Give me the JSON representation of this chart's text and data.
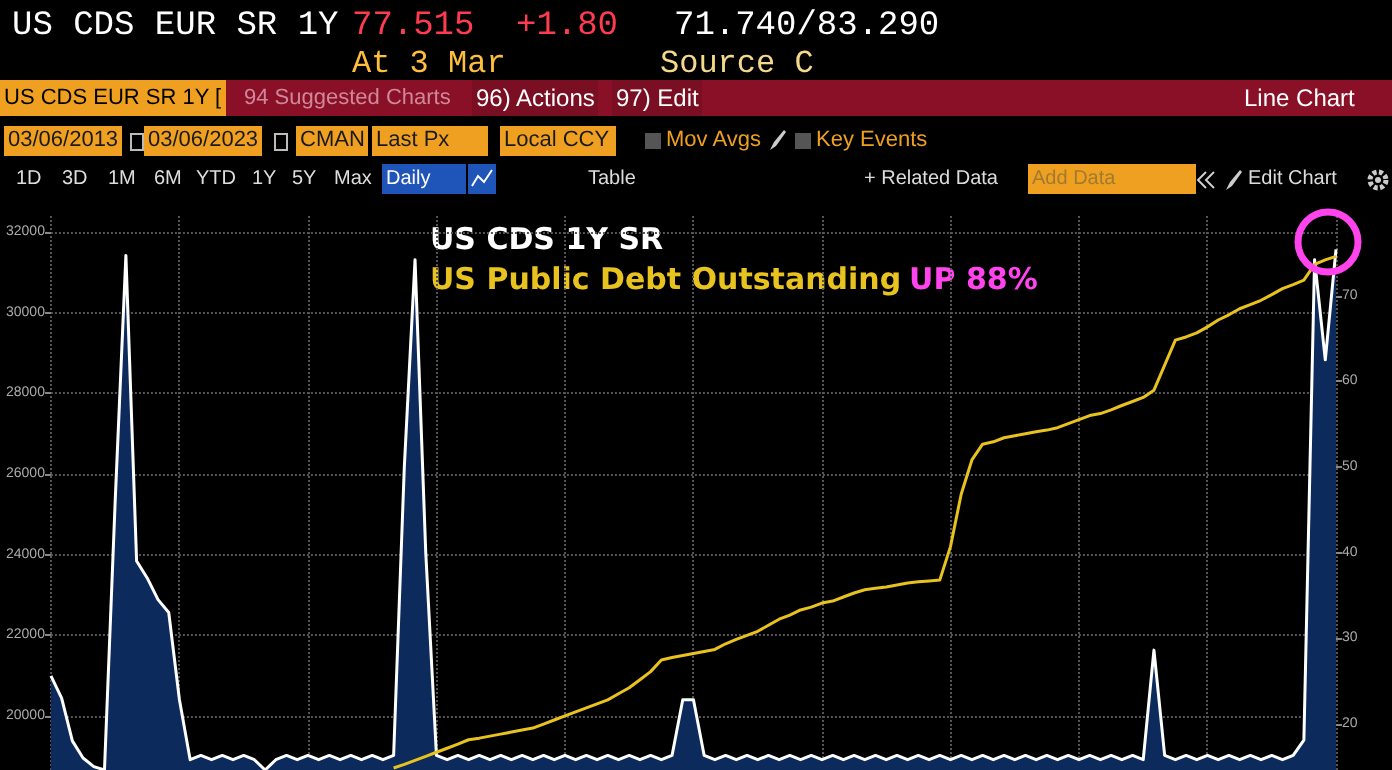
{
  "chart_data": {
    "type": "line",
    "annotations": [
      "US CDS EUR SR 1Y",
      "77.515",
      "+1.80",
      "71.740/83.290",
      "At 3 Mar",
      "Source C",
      "US CDS EUR SR 1Y [",
      "94 Suggested Charts",
      "96) Actions",
      "97) Edit",
      "Line Chart",
      "03/06/2013",
      "03/06/2023",
      "CMAN",
      "Last Px",
      "Local CCY",
      "Mov Avgs",
      "Key Events",
      "1D",
      "3D",
      "1M",
      "6M",
      "YTD",
      "1Y",
      "5Y",
      "Max",
      "Daily",
      "Table",
      "+ Related Data",
      "Add Data",
      "Edit Chart",
      "UP 88%"
    ],
    "categories": [
      null,
      null,
      null,
      null,
      null,
      null,
      null,
      null,
      null,
      null,
      null,
      null,
      null,
      null,
      null,
      null,
      null,
      null,
      null,
      null,
      null,
      null,
      null,
      null,
      null,
      null,
      null,
      null,
      null,
      null,
      null,
      null,
      null,
      null,
      null,
      null,
      null,
      null,
      null,
      null,
      null,
      null,
      null,
      null,
      null,
      null,
      null,
      null,
      null,
      null,
      null,
      null,
      null,
      null,
      null,
      null,
      null,
      null,
      null,
      null,
      null,
      null,
      null,
      null,
      null,
      null,
      null,
      null,
      null,
      null,
      null,
      null,
      null,
      null,
      null,
      null,
      null,
      null,
      null,
      null,
      null,
      null,
      null,
      null,
      null,
      null,
      null,
      null,
      null,
      null,
      null,
      null,
      null,
      null,
      null,
      null,
      null,
      null,
      null,
      null,
      null,
      null,
      null,
      null,
      null,
      null,
      null,
      null,
      null,
      null,
      null,
      null,
      null,
      null,
      null,
      null,
      null,
      null,
      null,
      null,
      null
    ],
    "ylim": [
      18660,
      32400
    ],
    "yticks": [
      20000,
      22000,
      24000,
      26000,
      28000,
      30000,
      32000
    ],
    "y2lim": [
      14.6,
      79.3
    ],
    "y2ticks": [
      20,
      30,
      40,
      50,
      60,
      70
    ],
    "grid": true,
    "tick_labels": "y",
    "series": [
      {
        "name": "US CDS 1Y SR",
        "type": "area",
        "axis": "y2",
        "color": "#ffffff",
        "values": [
          25.6,
          23,
          18,
          16,
          15,
          14.6,
          46,
          74.7,
          39,
          37,
          34.5,
          33,
          22.8,
          15.8,
          16.3,
          15.8,
          16.3,
          15.8,
          16.3,
          15.8,
          14.6,
          15.8,
          16.3,
          15.8,
          16.3,
          15.8,
          16.3,
          15.8,
          16.3,
          15.8,
          16.3,
          15.8,
          16.3,
          50,
          74.2,
          40,
          16.3,
          15.8,
          16.3,
          15.8,
          16.3,
          15.8,
          16.3,
          15.8,
          16.3,
          15.8,
          16.3,
          15.8,
          16.3,
          15.8,
          16.3,
          15.8,
          16.3,
          15.8,
          16.3,
          15.8,
          16.3,
          15.8,
          16.3,
          22.8,
          22.8,
          16.3,
          15.8,
          16.3,
          15.8,
          16.3,
          15.8,
          16.3,
          15.8,
          16.3,
          15.8,
          16.3,
          15.8,
          16.3,
          15.8,
          16.3,
          15.8,
          16.3,
          15.8,
          16.3,
          15.8,
          16.3,
          15.8,
          16.3,
          15.8,
          16.3,
          15.8,
          16.3,
          15.8,
          16.3,
          15.8,
          16.3,
          15.8,
          16.3,
          15.8,
          16.3,
          15.8,
          16.3,
          15.8,
          16.3,
          15.8,
          16.3,
          15.8,
          28.6,
          16.3,
          15.8,
          16.3,
          15.8,
          16.3,
          15.8,
          16.3,
          15.8,
          16.3,
          15.8,
          16.3,
          15.8,
          16.3,
          18.1,
          74.2,
          62.5,
          75.4
        ]
      },
      {
        "name": "US Public Debt Outstanding",
        "type": "line",
        "axis": "y",
        "color": "#e8c21e",
        "values": [
          null,
          null,
          null,
          null,
          null,
          null,
          null,
          null,
          null,
          null,
          null,
          null,
          null,
          null,
          null,
          null,
          null,
          null,
          null,
          null,
          null,
          null,
          null,
          null,
          null,
          null,
          null,
          null,
          null,
          null,
          null,
          null,
          18710,
          18800,
          18900,
          19000,
          19100,
          19200,
          19300,
          19410,
          19450,
          19500,
          19550,
          19600,
          19650,
          19700,
          19800,
          19900,
          20000,
          20100,
          20200,
          20300,
          20400,
          20550,
          20700,
          20900,
          21100,
          21390,
          21450,
          21500,
          21550,
          21600,
          21650,
          21790,
          21900,
          22000,
          22100,
          22250,
          22400,
          22500,
          22630,
          22700,
          22800,
          22850,
          22950,
          23050,
          23130,
          23170,
          23200,
          23250,
          23300,
          23330,
          23350,
          23370,
          24200,
          25500,
          26350,
          26740,
          26800,
          26900,
          26950,
          27000,
          27050,
          27090,
          27150,
          27250,
          27350,
          27450,
          27500,
          27590,
          27700,
          27800,
          27900,
          28080,
          28700,
          29320,
          29400,
          29500,
          29650,
          29820,
          29950,
          30100,
          30200,
          30310,
          30450,
          30600,
          30700,
          30810,
          31200,
          31310,
          31400
        ]
      }
    ]
  }
}
